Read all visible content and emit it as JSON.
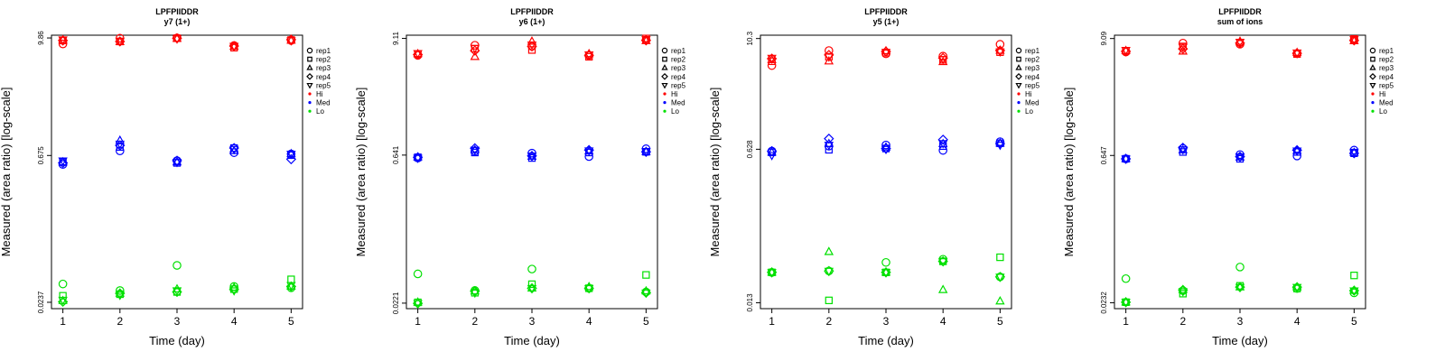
{
  "chart_data": [
    {
      "type": "scatter",
      "title": "LPFPIIDDR",
      "subtitle": "y7 (1+)",
      "xlabel": "Time (day)",
      "ylabel": "Measured (area ratio) [log-scale]",
      "y_scale": "log",
      "xlim": [
        0.8,
        5.2
      ],
      "ylim": [
        0.0205,
        10.5
      ],
      "x_ticks": [
        1,
        2,
        3,
        4,
        5
      ],
      "y_tick_values": [
        0.0237,
        0.675,
        9.86
      ],
      "y_tick_labels": [
        "0.0237",
        "0.675",
        "9.86"
      ],
      "series": [
        {
          "name": "Hi",
          "color": "#ff0000",
          "points": {
            "rep1": [
              8.6,
              9.8,
              9.86,
              8.3,
              9.3
            ],
            "rep2": [
              9.3,
              9.1,
              9.8,
              7.9,
              9.4
            ],
            "rep3": [
              9.4,
              9.0,
              9.7,
              8.1,
              9.3
            ],
            "rep4": [
              9.3,
              9.1,
              9.8,
              8.2,
              9.5
            ],
            "rep5": [
              9.5,
              9.2,
              9.7,
              8.2,
              9.3
            ]
          }
        },
        {
          "name": "Med",
          "color": "#0000ff",
          "points": {
            "rep1": [
              0.55,
              0.75,
              0.6,
              0.72,
              0.7
            ],
            "rep2": [
              0.58,
              0.82,
              0.57,
              0.8,
              0.68
            ],
            "rep3": [
              0.58,
              0.95,
              0.58,
              0.75,
              0.7
            ],
            "rep4": [
              0.57,
              0.85,
              0.6,
              0.8,
              0.62
            ],
            "rep5": [
              0.6,
              0.88,
              0.58,
              0.78,
              0.7
            ]
          }
        },
        {
          "name": "Lo",
          "color": "#00e000",
          "points": {
            "rep1": [
              0.036,
              0.031,
              0.055,
              0.034,
              0.033
            ],
            "rep2": [
              0.0275,
              0.0285,
              0.03,
              0.032,
              0.04
            ],
            "rep3": [
              0.0245,
              0.029,
              0.032,
              0.033,
              0.034
            ],
            "rep4": [
              0.024,
              0.029,
              0.03,
              0.032,
              0.034
            ],
            "rep5": [
              0.025,
              0.028,
              0.031,
              0.031,
              0.035
            ]
          }
        }
      ]
    },
    {
      "type": "scatter",
      "title": "LPFPIIDDR",
      "subtitle": "y6 (1+)",
      "xlabel": "Time (day)",
      "ylabel": "Measured (area ratio) [log-scale]",
      "y_scale": "log",
      "xlim": [
        0.8,
        5.2
      ],
      "ylim": [
        0.0195,
        9.8
      ],
      "x_ticks": [
        1,
        2,
        3,
        4,
        5
      ],
      "y_tick_values": [
        0.0221,
        0.641,
        9.11
      ],
      "y_tick_labels": [
        "0.0221",
        "0.641",
        "9.11"
      ],
      "series": [
        {
          "name": "Hi",
          "color": "#ff0000",
          "points": {
            "rep1": [
              6.2,
              7.8,
              7.6,
              6.2,
              8.8
            ],
            "rep2": [
              6.4,
              7.2,
              7.0,
              6.0,
              9.1
            ],
            "rep3": [
              6.4,
              6.0,
              8.5,
              6.4,
              8.6
            ],
            "rep4": [
              6.3,
              6.9,
              7.6,
              6.2,
              8.7
            ],
            "rep5": [
              6.5,
              7.3,
              7.9,
              6.3,
              8.9
            ]
          }
        },
        {
          "name": "Med",
          "color": "#0000ff",
          "points": {
            "rep1": [
              0.6,
              0.7,
              0.67,
              0.62,
              0.74
            ],
            "rep2": [
              0.61,
              0.68,
              0.6,
              0.68,
              0.69
            ],
            "rep3": [
              0.61,
              0.72,
              0.62,
              0.7,
              0.69
            ],
            "rep4": [
              0.61,
              0.75,
              0.63,
              0.72,
              0.69
            ],
            "rep5": [
              0.6,
              0.72,
              0.63,
              0.71,
              0.7
            ]
          }
        },
        {
          "name": "Lo",
          "color": "#00e000",
          "points": {
            "rep1": [
              0.043,
              0.0295,
              0.048,
              0.031,
              0.0285
            ],
            "rep2": [
              0.0225,
              0.028,
              0.034,
              0.031,
              0.042
            ],
            "rep3": [
              0.0225,
              0.029,
              0.031,
              0.032,
              0.029
            ],
            "rep4": [
              0.022,
              0.029,
              0.031,
              0.031,
              0.028
            ],
            "rep5": [
              0.022,
              0.028,
              0.031,
              0.031,
              0.028
            ]
          }
        }
      ]
    },
    {
      "type": "scatter",
      "title": "LPFPIIDDR",
      "subtitle": "y5 (1+)",
      "xlabel": "Time (day)",
      "ylabel": "Measured (area ratio) [log-scale]",
      "y_scale": "log",
      "xlim": [
        0.8,
        5.2
      ],
      "ylim": [
        0.0112,
        11.2
      ],
      "x_ticks": [
        1,
        2,
        3,
        4,
        5
      ],
      "y_tick_values": [
        0.013,
        0.628,
        10.3
      ],
      "y_tick_labels": [
        "0.013",
        "0.628",
        "10.3"
      ],
      "series": [
        {
          "name": "Hi",
          "color": "#ff0000",
          "points": {
            "rep1": [
              5.2,
              7.6,
              7.0,
              6.6,
              8.9
            ],
            "rep2": [
              5.8,
              6.5,
              7.2,
              6.0,
              7.3
            ],
            "rep3": [
              6.0,
              5.8,
              7.5,
              5.7,
              7.6
            ],
            "rep4": [
              6.2,
              6.8,
              7.4,
              6.3,
              7.6
            ],
            "rep5": [
              6.3,
              6.5,
              7.3,
              6.1,
              7.4
            ]
          }
        },
        {
          "name": "Med",
          "color": "#0000ff",
          "points": {
            "rep1": [
              0.6,
              0.68,
              0.7,
              0.61,
              0.76
            ],
            "rep2": [
              0.58,
              0.62,
              0.64,
              0.68,
              0.73
            ],
            "rep3": [
              0.58,
              0.72,
              0.66,
              0.72,
              0.73
            ],
            "rep4": [
              0.6,
              0.82,
              0.64,
              0.8,
              0.72
            ],
            "rep5": [
              0.54,
              0.7,
              0.63,
              0.73,
              0.7
            ]
          }
        },
        {
          "name": "Lo",
          "color": "#00e000",
          "points": {
            "rep1": [
              0.028,
              0.029,
              0.036,
              0.039,
              0.025
            ],
            "rep2": [
              0.028,
              0.0138,
              0.028,
              0.037,
              0.041
            ],
            "rep3": [
              0.028,
              0.047,
              0.028,
              0.018,
              0.0135
            ],
            "rep4": [
              0.028,
              0.029,
              0.028,
              0.037,
              0.025
            ],
            "rep5": [
              0.028,
              0.029,
              0.028,
              0.037,
              0.025
            ]
          }
        }
      ]
    },
    {
      "type": "scatter",
      "title": "LPFPIIDDR",
      "subtitle": "sum of ions",
      "xlabel": "Time (day)",
      "ylabel": "Measured (area ratio) [log-scale]",
      "y_scale": "log",
      "xlim": [
        0.8,
        5.2
      ],
      "ylim": [
        0.0203,
        9.8
      ],
      "x_ticks": [
        1,
        2,
        3,
        4,
        5
      ],
      "y_tick_values": [
        0.0232,
        0.647,
        9.09
      ],
      "y_tick_labels": [
        "0.0232",
        "0.647",
        "9.09"
      ],
      "series": [
        {
          "name": "Hi",
          "color": "#ff0000",
          "points": {
            "rep1": [
              6.7,
              8.2,
              8.0,
              6.5,
              8.8
            ],
            "rep2": [
              6.9,
              7.6,
              8.3,
              6.4,
              9.0
            ],
            "rep3": [
              6.9,
              6.8,
              8.5,
              6.6,
              8.6
            ],
            "rep4": [
              6.8,
              7.2,
              8.2,
              6.5,
              8.7
            ],
            "rep5": [
              7.0,
              7.5,
              8.4,
              6.6,
              8.9
            ]
          }
        },
        {
          "name": "Med",
          "color": "#0000ff",
          "points": {
            "rep1": [
              0.6,
              0.76,
              0.66,
              0.64,
              0.73
            ],
            "rep2": [
              0.6,
              0.7,
              0.6,
              0.7,
              0.68
            ],
            "rep3": [
              0.6,
              0.73,
              0.62,
              0.72,
              0.69
            ],
            "rep4": [
              0.6,
              0.77,
              0.63,
              0.73,
              0.68
            ],
            "rep5": [
              0.6,
              0.74,
              0.63,
              0.72,
              0.7
            ]
          }
        },
        {
          "name": "Lo",
          "color": "#00e000",
          "points": {
            "rep1": [
              0.04,
              0.0305,
              0.052,
              0.032,
              0.029
            ],
            "rep2": [
              0.0235,
              0.0285,
              0.034,
              0.032,
              0.043
            ],
            "rep3": [
              0.0235,
              0.031,
              0.033,
              0.033,
              0.0305
            ],
            "rep4": [
              0.0235,
              0.031,
              0.033,
              0.033,
              0.0305
            ],
            "rep5": [
              0.0235,
              0.03,
              0.033,
              0.033,
              0.0305
            ]
          }
        }
      ]
    }
  ],
  "legend": {
    "shape_entries": [
      {
        "label": "rep1",
        "symbol": "circle"
      },
      {
        "label": "rep2",
        "symbol": "square"
      },
      {
        "label": "rep3",
        "symbol": "triangle-up"
      },
      {
        "label": "rep4",
        "symbol": "diamond"
      },
      {
        "label": "rep5",
        "symbol": "triangle-down"
      }
    ],
    "color_entries": [
      {
        "label": "Hi",
        "color": "#ff0000"
      },
      {
        "label": "Med",
        "color": "#0000ff"
      },
      {
        "label": "Lo",
        "color": "#00e000"
      }
    ]
  }
}
